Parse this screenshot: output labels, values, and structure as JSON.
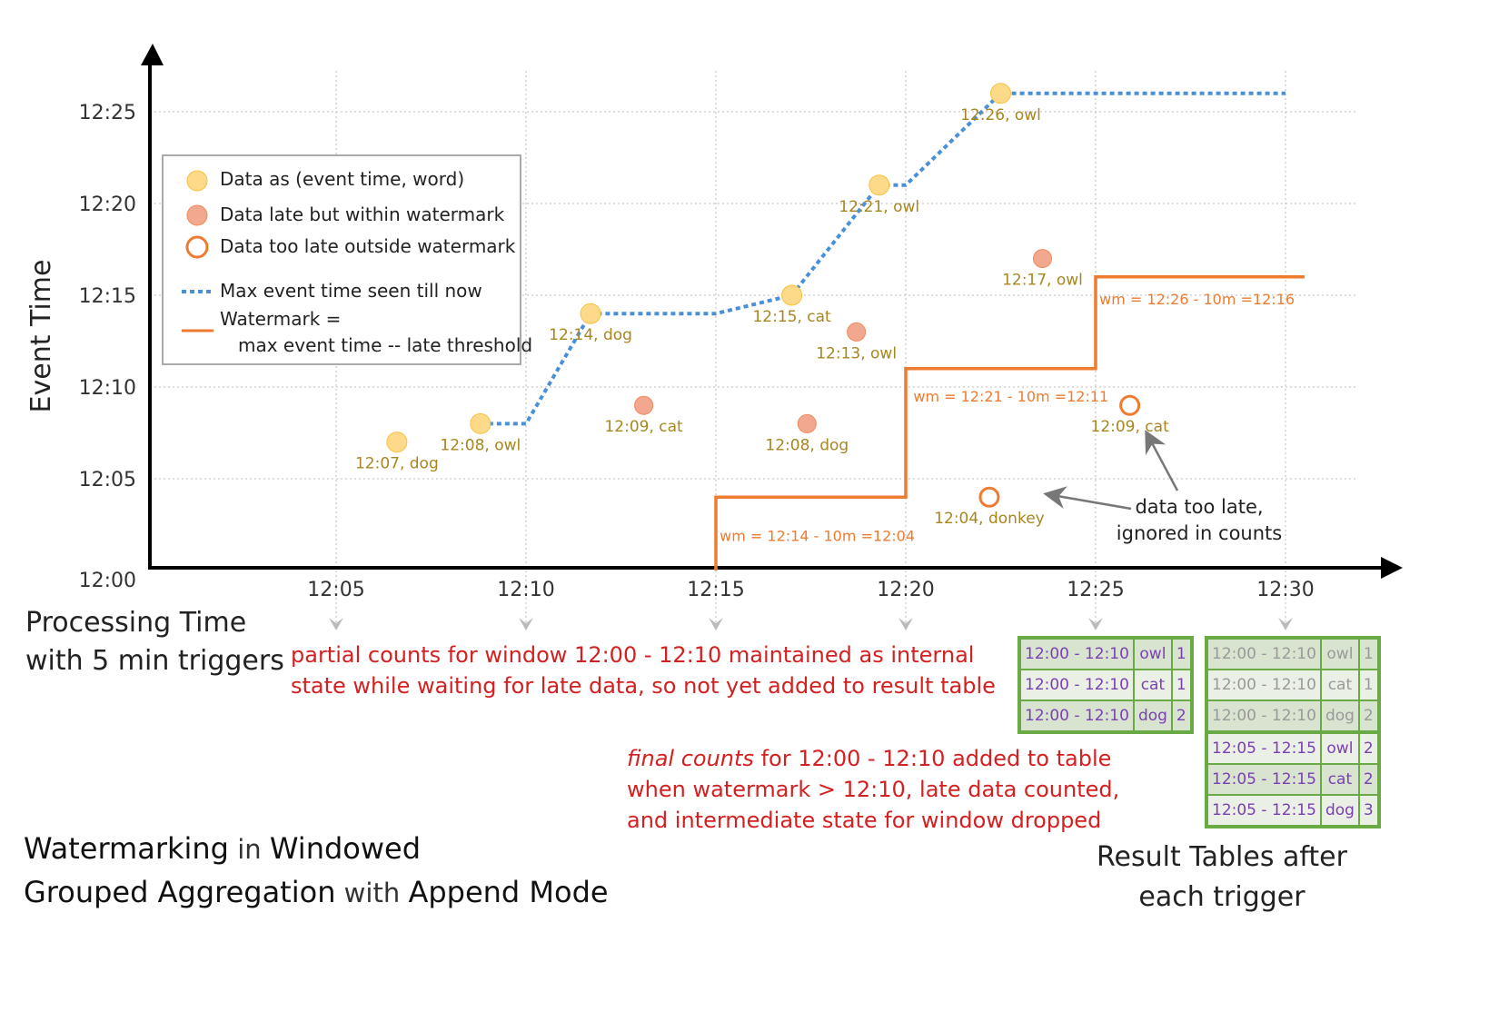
{
  "axes": {
    "y_label": "Event Time",
    "x_label_line1": "Processing Time",
    "x_label_line2": "with 5 min triggers",
    "y_ticks": [
      "12:00",
      "12:05",
      "12:10",
      "12:15",
      "12:20",
      "12:25"
    ],
    "x_ticks": [
      "12:05",
      "12:10",
      "12:15",
      "12:20",
      "12:25",
      "12:30"
    ]
  },
  "legend": {
    "on_time": "Data as (event time, word)",
    "late": "Data late but within watermark",
    "too_late": "Data too late outside watermark",
    "max_line": "Max event time seen till now",
    "watermark_line1": "Watermark =",
    "watermark_line2": "max event time -- late threshold"
  },
  "colors": {
    "on_time": "#fdd98a",
    "late": "#f2a88e",
    "too_late": "#ee7b30",
    "max_line": "#4a90d9",
    "watermark": "#ee7b30",
    "label_gold": "#a8861f",
    "annotation_red": "#d42020",
    "table_green": "#6aaa45",
    "table_text": "#7a3fb0"
  },
  "points": [
    {
      "proc": 6.6,
      "event": 7,
      "label": "12:07, dog",
      "type": "on_time"
    },
    {
      "proc": 8.8,
      "event": 8,
      "label": "12:08, owl",
      "type": "on_time"
    },
    {
      "proc": 11.7,
      "event": 14,
      "label": "12:14, dog",
      "type": "on_time"
    },
    {
      "proc": 13.1,
      "event": 9,
      "label": "12:09, cat",
      "type": "late"
    },
    {
      "proc": 17.0,
      "event": 15,
      "label": "12:15, cat",
      "type": "on_time"
    },
    {
      "proc": 17.4,
      "event": 8,
      "label": "12:08, dog",
      "type": "late"
    },
    {
      "proc": 18.7,
      "event": 13,
      "label": "12:13, owl",
      "type": "late"
    },
    {
      "proc": 19.3,
      "event": 21,
      "label": "12:21, owl",
      "type": "on_time"
    },
    {
      "proc": 22.5,
      "event": 26,
      "label": "12:26, owl",
      "type": "on_time"
    },
    {
      "proc": 23.6,
      "event": 17,
      "label": "12:17, owl",
      "type": "late"
    },
    {
      "proc": 22.2,
      "event": 4,
      "label": "12:04, donkey",
      "type": "too_late"
    },
    {
      "proc": 25.9,
      "event": 9,
      "label": "12:09, cat",
      "type": "too_late"
    }
  ],
  "max_event_line": [
    [
      8.8,
      8
    ],
    [
      10,
      8
    ],
    [
      11.7,
      14
    ],
    [
      15,
      14
    ],
    [
      17,
      15
    ],
    [
      19.3,
      21
    ],
    [
      20,
      21
    ],
    [
      22.5,
      26
    ],
    [
      30,
      26
    ]
  ],
  "watermark_line": [
    [
      15,
      0
    ],
    [
      15,
      4
    ],
    [
      20,
      4
    ],
    [
      20,
      11
    ],
    [
      25,
      11
    ],
    [
      25,
      16
    ],
    [
      30.5,
      16
    ]
  ],
  "watermark_labels": [
    "wm = 12:14 - 10m =12:04",
    "wm = 12:21 - 10m =12:11",
    "wm = 12:26 - 10m =12:16"
  ],
  "annotations": {
    "partial_1": "partial counts for window 12:00 - 12:10 maintained as internal",
    "partial_2": "state while waiting for late data, so not yet added  to result table",
    "final_em": "final counts",
    "final_1": " for 12:00 - 12:10 added to table",
    "final_2": "when watermark > 12:10, late data counted,",
    "final_3": "and intermediate state for window dropped",
    "too_late_1": "data too late,",
    "too_late_2": "ignored in counts"
  },
  "title": {
    "w1": "Watermarking",
    "w2": " in ",
    "w3": "Windowed",
    "w4": "Grouped Aggregation",
    "w5": " with ",
    "w6": "Append Mode"
  },
  "result_caption_1": "Result Tables after",
  "result_caption_2": "each trigger",
  "table_1": [
    [
      "12:00 - 12:10",
      "owl",
      "1"
    ],
    [
      "12:00 - 12:10",
      "cat",
      "1"
    ],
    [
      "12:00 - 12:10",
      "dog",
      "2"
    ]
  ],
  "table_2": [
    [
      "12:00 - 12:10",
      "owl",
      "1"
    ],
    [
      "12:00 - 12:10",
      "cat",
      "1"
    ],
    [
      "12:00 - 12:10",
      "dog",
      "2"
    ],
    [
      "12:05 - 12:15",
      "owl",
      "2"
    ],
    [
      "12:05 - 12:15",
      "cat",
      "2"
    ],
    [
      "12:05 - 12:15",
      "dog",
      "3"
    ]
  ]
}
